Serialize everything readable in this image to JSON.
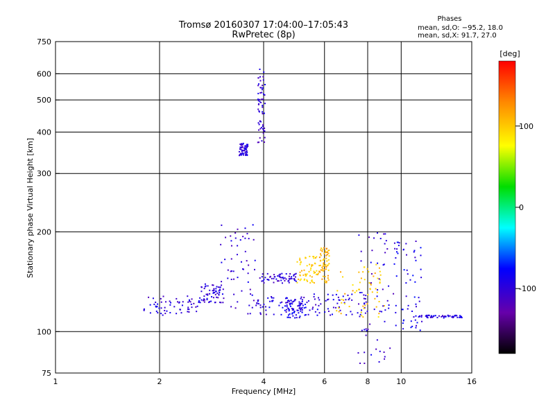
{
  "chart_data": {
    "type": "scatter",
    "title": "Tromsø 20160307 17:04:00–17:05:43",
    "subtitle": "RwPretec (8p)",
    "xlabel": "Frequency [MHz]",
    "ylabel": "Stationary phase Virtual Height [km]",
    "x_scale": "log",
    "y_scale": "log",
    "xlim": [
      1,
      16
    ],
    "ylim": [
      75,
      750
    ],
    "xticks": [
      1,
      2,
      4,
      6,
      8,
      10,
      16
    ],
    "yticks": [
      75,
      100,
      200,
      300,
      400,
      500,
      600,
      750
    ],
    "grid": true,
    "phases_box": {
      "title": "Phases",
      "line1": "mean, sd,O: −95.2, 18.0",
      "line2": "mean, sd,X:  91.7, 27.0"
    },
    "colorbar": {
      "label": "[deg]",
      "range": [
        -180,
        180
      ],
      "ticks": [
        100,
        0,
        -100
      ],
      "colors": [
        "#ff0000",
        "#ff8800",
        "#ffff00",
        "#00dd00",
        "#00ffff",
        "#0000ff",
        "#6600aa",
        "#000000"
      ]
    },
    "clusters": [
      {
        "x": [
          1.8,
          2.6
        ],
        "y": [
          112,
          128
        ],
        "phase": -100
      },
      {
        "x": [
          2.6,
          3.0
        ],
        "y": [
          122,
          140
        ],
        "phase": -100
      },
      {
        "x": [
          3.0,
          3.8
        ],
        "y": [
          112,
          215
        ],
        "phase": -100
      },
      {
        "x": [
          3.4,
          3.6
        ],
        "y": [
          340,
          370
        ],
        "phase": -100
      },
      {
        "x": [
          3.85,
          4.05
        ],
        "y": [
          370,
          620
        ],
        "phase": -100
      },
      {
        "x": [
          3.9,
          5.0
        ],
        "y": [
          140,
          150
        ],
        "phase": -100
      },
      {
        "x": [
          3.8,
          5.5
        ],
        "y": [
          112,
          128
        ],
        "phase": -95
      },
      {
        "x": [
          4.6,
          5.3
        ],
        "y": [
          110,
          125
        ],
        "phase": -90
      },
      {
        "x": [
          5.0,
          5.8
        ],
        "y": [
          140,
          170
        ],
        "phase": 100
      },
      {
        "x": [
          5.5,
          8.0
        ],
        "y": [
          112,
          130
        ],
        "phase": -95
      },
      {
        "x": [
          6.5,
          9.0
        ],
        "y": [
          110,
          160
        ],
        "phase": 100
      },
      {
        "x": [
          7.5,
          9.5
        ],
        "y": [
          80,
          200
        ],
        "phase": -100
      },
      {
        "x": [
          9.5,
          11.5
        ],
        "y": [
          100,
          190
        ],
        "phase": -90
      },
      {
        "x": [
          11.0,
          15.0
        ],
        "y": [
          110,
          112
        ],
        "phase": -95
      },
      {
        "x": [
          5.8,
          6.2
        ],
        "y": [
          140,
          180
        ],
        "phase": 110
      }
    ]
  }
}
